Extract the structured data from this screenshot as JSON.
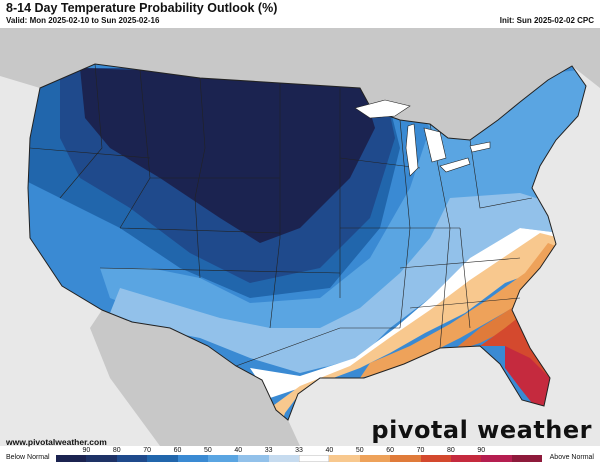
{
  "header": {
    "title": "8-14 Day Temperature Probability Outlook (%)",
    "valid": "Valid: Mon 2025-02-10 to Sun 2025-02-16",
    "init": "Init: Sun 2025-02-02 CPC"
  },
  "footer": {
    "website": "www.pivotalweather.com",
    "brand": "pivotal weather"
  },
  "legend": {
    "left_label": "Below Normal",
    "right_label": "Above Normal",
    "tick_labels": [
      "90",
      "80",
      "70",
      "60",
      "50",
      "40",
      "33",
      "33",
      "40",
      "50",
      "60",
      "70",
      "80",
      "90"
    ],
    "colors": [
      "#1b2350",
      "#1e3266",
      "#1f4a8c",
      "#2166ac",
      "#3a8ad3",
      "#5aa5e2",
      "#92c1ea",
      "#c6dbef",
      "#ffffff",
      "#f8c88e",
      "#eea25a",
      "#e07b3a",
      "#d4492e",
      "#c52a3e",
      "#b51e50",
      "#8e1a3b"
    ]
  },
  "map": {
    "ocean_color": "#e8e8e8",
    "land_color": "#c8c8c8",
    "regions": [
      {
        "name": "below-90",
        "color": "#1b2350"
      },
      {
        "name": "below-70",
        "color": "#1f4a8c"
      },
      {
        "name": "below-60",
        "color": "#2166ac"
      },
      {
        "name": "below-50",
        "color": "#3a8ad3"
      },
      {
        "name": "below-40",
        "color": "#5aa5e2"
      },
      {
        "name": "below-33",
        "color": "#92c1ea"
      },
      {
        "name": "normal",
        "color": "#ffffff"
      },
      {
        "name": "above-33",
        "color": "#f8c88e"
      },
      {
        "name": "above-40",
        "color": "#eea25a"
      },
      {
        "name": "above-50",
        "color": "#e07b3a"
      },
      {
        "name": "above-60",
        "color": "#d4492e"
      },
      {
        "name": "above-70",
        "color": "#c52a3e"
      }
    ]
  }
}
